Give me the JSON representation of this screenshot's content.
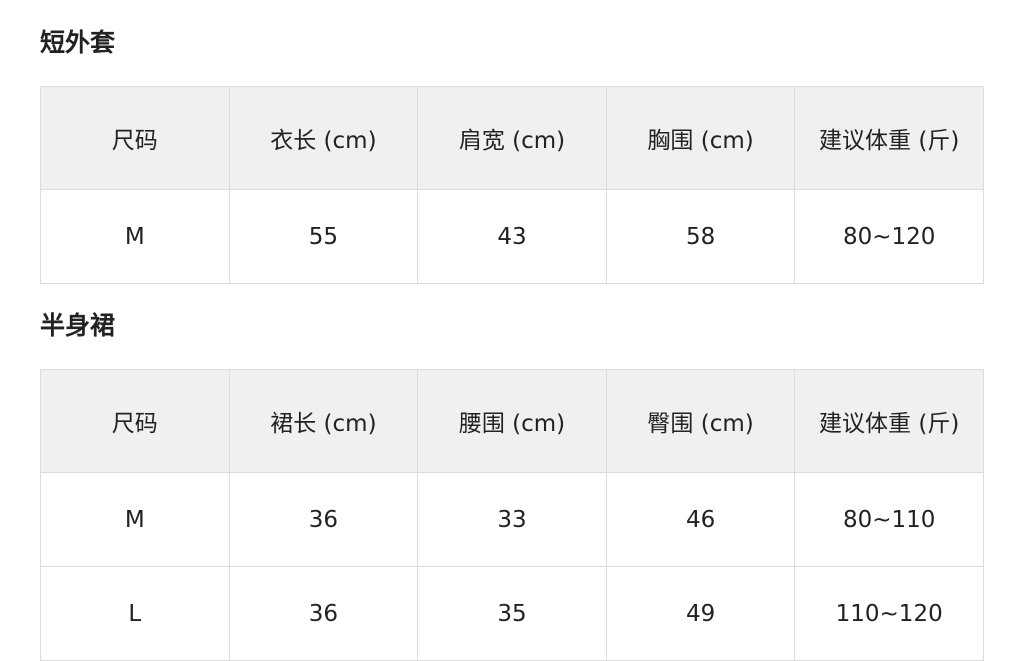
{
  "sections": [
    {
      "title": "短外套",
      "headers": [
        "尺码",
        "衣长 (cm)",
        "肩宽 (cm)",
        "胸围 (cm)",
        "建议体重 (斤)"
      ],
      "rows": [
        [
          "M",
          "55",
          "43",
          "58",
          "80~120"
        ]
      ]
    },
    {
      "title": "半身裙",
      "headers": [
        "尺码",
        "裙长 (cm)",
        "腰围 (cm)",
        "臀围 (cm)",
        "建议体重 (斤)"
      ],
      "rows": [
        [
          "M",
          "36",
          "33",
          "46",
          "80~110"
        ],
        [
          "L",
          "36",
          "35",
          "49",
          "110~120"
        ]
      ]
    }
  ]
}
